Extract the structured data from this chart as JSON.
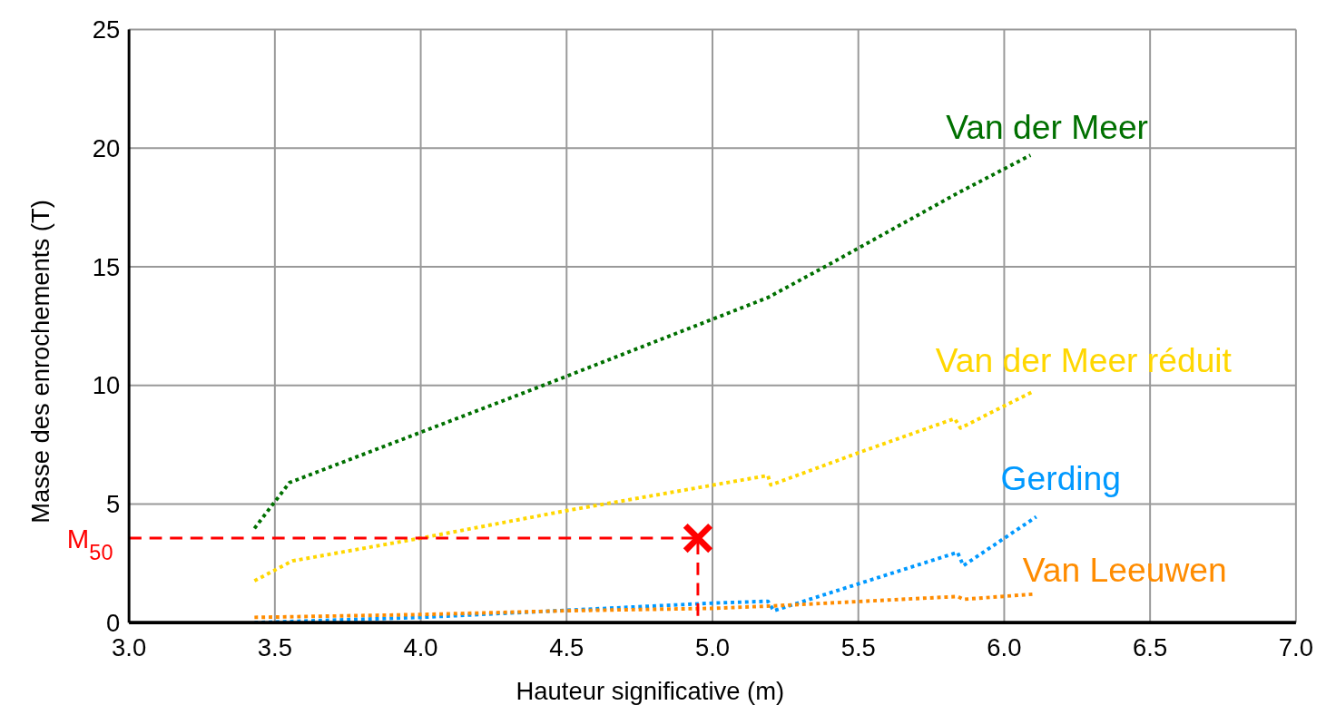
{
  "chart_data": {
    "type": "line",
    "xlabel": "Hauteur significative (m)",
    "ylabel": "Masse des enrochements (T)",
    "xlim": [
      3.0,
      7.0
    ],
    "ylim": [
      0,
      25
    ],
    "xticks": [
      {
        "value": 3,
        "label": "3.0"
      },
      {
        "value": 3.5,
        "label": "3.5"
      },
      {
        "value": 4,
        "label": "4.0"
      },
      {
        "value": 4.5,
        "label": "4.5"
      },
      {
        "value": 5,
        "label": "5.0"
      },
      {
        "value": 5.5,
        "label": "5.5"
      },
      {
        "value": 6,
        "label": "6.0"
      },
      {
        "value": 6.5,
        "label": "6.5"
      },
      {
        "value": 7,
        "label": "7.0"
      }
    ],
    "yticks": [
      0,
      5,
      10,
      15,
      20,
      25
    ],
    "grid": true,
    "line_style": "dotted",
    "series": [
      {
        "name": "Van der Meer",
        "color": "#007000",
        "x": [
          3.43,
          3.55,
          4.42,
          5.19,
          5.4,
          5.84,
          6.09
        ],
        "values": [
          3.97,
          5.9,
          10.0,
          13.7,
          15.1,
          18.1,
          19.7
        ]
      },
      {
        "name": "Van der Meer réduit",
        "color": "#ffd700",
        "x": [
          3.43,
          3.56,
          4.0,
          4.5,
          5.19,
          5.2,
          5.51,
          5.83,
          5.85,
          6.1
        ],
        "values": [
          1.76,
          2.6,
          3.56,
          4.72,
          6.2,
          5.8,
          7.2,
          8.6,
          8.2,
          9.75
        ]
      },
      {
        "name": "Gerding",
        "color": "#0099ff",
        "x": [
          3.43,
          4.0,
          4.5,
          5.0,
          5.19,
          5.21,
          5.84,
          5.86,
          6.11
        ],
        "values": [
          0,
          0.22,
          0.52,
          0.82,
          0.9,
          0.5,
          2.96,
          2.4,
          4.46
        ]
      },
      {
        "name": "Van Leeuwen",
        "color": "#ff8c00",
        "x": [
          3.43,
          4.0,
          4.5,
          5.0,
          5.2,
          5.84,
          5.86,
          6.1
        ],
        "values": [
          0.22,
          0.34,
          0.5,
          0.6,
          0.7,
          1.1,
          0.98,
          1.2
        ]
      },
      {
        "color": "#ff0000",
        "type": "line",
        "line_style": "dashed",
        "x": [
          3.0,
          4.95,
          4.95
        ],
        "values": [
          3.56,
          3.56,
          0
        ]
      },
      {
        "color": "#ff0000",
        "type": "scatter",
        "marker": "cross",
        "x": [
          4.95
        ],
        "values": [
          3.56
        ]
      }
    ],
    "annotations": [
      {
        "text": "M$_{50}$",
        "x": 3.0,
        "y": 3.56
      }
    ]
  }
}
